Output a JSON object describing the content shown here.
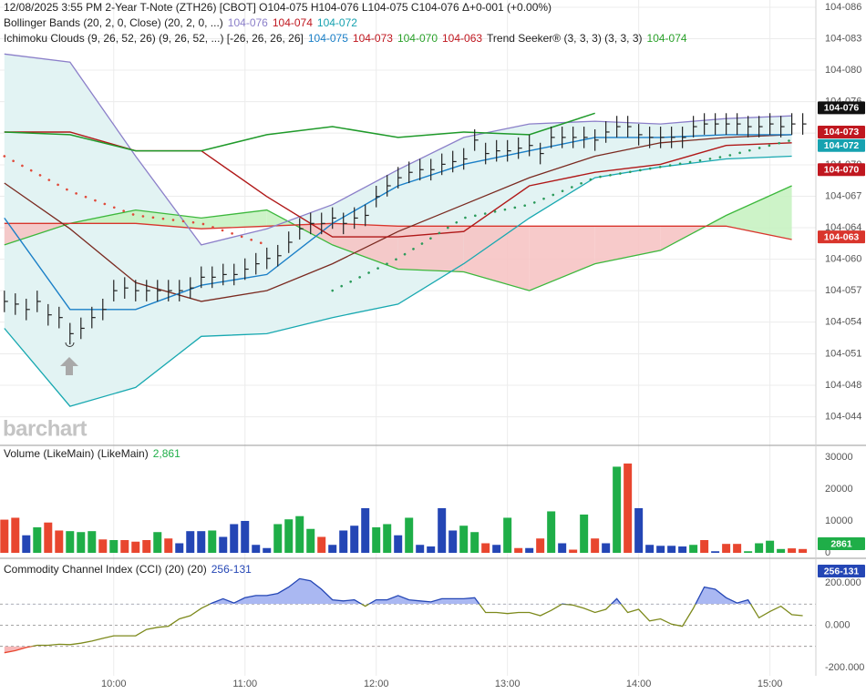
{
  "chart_data": [
    {
      "type": "ohlc",
      "legend_lines": [
        [
          {
            "text": "12/08/2025  3:55 PM 2-Year T-Note (ZTH26) [CBOT] O104-075 H104-076 L104-075 C104-076 Δ+0-001 (+0.00%)",
            "color": "#222222"
          }
        ],
        [
          {
            "text": "Bollinger Bands (20, 2, 0, Close)  (20, 2, 0, ...)",
            "color": "#222222"
          },
          {
            "text": "104-076",
            "color": "#8b7fc9"
          },
          {
            "text": "104-074",
            "color": "#c0171f"
          },
          {
            "text": "104-072",
            "color": "#17a2b0"
          }
        ],
        [
          {
            "text": "Ichimoku Clouds (9, 26, 52, 26)  (9, 26, 52, ...)  [-26, 26, 26, 26]",
            "color": "#222222"
          },
          {
            "text": "104-075",
            "color": "#1a7fc7"
          },
          {
            "text": "104-073",
            "color": "#c0171f"
          },
          {
            "text": "104-070",
            "color": "#2aa12a"
          },
          {
            "text": "104-063",
            "color": "#c0171f"
          },
          {
            "text": "Trend Seeker® (3, 3, 3)  (3, 3, 3)",
            "color": "#222222"
          },
          {
            "text": "104-074",
            "color": "#2aa12a"
          }
        ]
      ],
      "watermark": "barchart",
      "color": "#222222",
      "grid": true,
      "xlim": [
        548,
        921
      ],
      "xticks": [
        {
          "value": 600,
          "label": "10:00"
        },
        {
          "value": 660,
          "label": "11:00"
        },
        {
          "value": 720,
          "label": "12:00"
        },
        {
          "value": 780,
          "label": "13:00"
        },
        {
          "value": 840,
          "label": "14:00"
        },
        {
          "value": 900,
          "label": "15:00"
        }
      ],
      "ylim": [
        104.1108,
        104.2761
      ],
      "yticks": [
        {
          "value": 104.2734,
          "label": "104-086"
        },
        {
          "value": 104.2617,
          "label": "104-083"
        },
        {
          "value": 104.25,
          "label": "104-080"
        },
        {
          "value": 104.2383,
          "label": "104-076"
        },
        {
          "value": 104.2266,
          "label": "104-073"
        },
        {
          "value": 104.2148,
          "label": "104-070"
        },
        {
          "value": 104.2031,
          "label": "104-067"
        },
        {
          "value": 104.1914,
          "label": "104-064"
        },
        {
          "value": 104.1797,
          "label": "104-060"
        },
        {
          "value": 104.168,
          "label": "104-057"
        },
        {
          "value": 104.1563,
          "label": "104-054"
        },
        {
          "value": 104.1445,
          "label": "104-051"
        },
        {
          "value": 104.1328,
          "label": "104-048"
        },
        {
          "value": 104.1211,
          "label": "104-044"
        }
      ],
      "x": [
        550,
        555,
        560,
        565,
        570,
        575,
        580,
        585,
        590,
        595,
        600,
        605,
        610,
        615,
        620,
        625,
        630,
        635,
        640,
        645,
        650,
        655,
        660,
        665,
        670,
        675,
        680,
        685,
        690,
        695,
        700,
        705,
        710,
        715,
        720,
        725,
        730,
        735,
        740,
        745,
        750,
        755,
        760,
        765,
        770,
        775,
        780,
        785,
        790,
        795,
        800,
        805,
        810,
        815,
        820,
        825,
        830,
        835,
        840,
        845,
        850,
        855,
        860,
        865,
        870,
        875,
        880,
        885,
        890,
        895,
        900,
        905,
        910,
        915
      ],
      "high": [
        104.168,
        104.167,
        104.165,
        104.168,
        104.163,
        104.162,
        104.156,
        104.158,
        104.162,
        104.165,
        104.172,
        104.173,
        104.172,
        104.172,
        104.172,
        104.172,
        104.172,
        104.173,
        104.177,
        104.177,
        104.178,
        104.178,
        104.18,
        104.182,
        104.184,
        104.185,
        104.19,
        104.195,
        104.197,
        104.197,
        104.199,
        104.197,
        104.199,
        104.2,
        104.207,
        104.211,
        104.214,
        104.216,
        104.217,
        104.217,
        104.219,
        104.22,
        104.221,
        104.228,
        104.223,
        104.224,
        104.224,
        104.225,
        104.226,
        104.223,
        104.229,
        104.229,
        104.229,
        104.229,
        104.228,
        104.231,
        104.233,
        104.233,
        104.23,
        104.229,
        104.229,
        104.229,
        104.229,
        104.233,
        104.234,
        104.234,
        104.234,
        104.234,
        104.233,
        104.233,
        104.234,
        104.233,
        104.234,
        104.234
      ],
      "low": [
        104.16,
        104.159,
        104.157,
        104.16,
        104.155,
        104.154,
        104.148,
        104.15,
        104.154,
        104.157,
        104.164,
        104.165,
        104.164,
        104.164,
        104.164,
        104.164,
        104.164,
        104.165,
        104.169,
        104.169,
        104.17,
        104.17,
        104.172,
        104.174,
        104.176,
        104.177,
        104.182,
        104.187,
        104.189,
        104.189,
        104.191,
        104.189,
        104.191,
        104.192,
        104.199,
        104.203,
        104.206,
        104.208,
        104.209,
        104.209,
        104.211,
        104.212,
        104.213,
        104.22,
        104.215,
        104.216,
        104.216,
        104.217,
        104.218,
        104.215,
        104.221,
        104.221,
        104.221,
        104.221,
        104.22,
        104.223,
        104.225,
        104.225,
        104.222,
        104.221,
        104.221,
        104.221,
        104.221,
        104.225,
        104.226,
        104.226,
        104.226,
        104.226,
        104.225,
        104.225,
        104.226,
        104.225,
        104.226,
        104.226
      ],
      "close": [
        104.164,
        104.163,
        104.161,
        104.164,
        104.159,
        104.158,
        104.152,
        104.154,
        104.158,
        104.161,
        104.168,
        104.169,
        104.168,
        104.168,
        104.168,
        104.168,
        104.168,
        104.169,
        104.173,
        104.173,
        104.174,
        104.174,
        104.176,
        104.178,
        104.18,
        104.181,
        104.186,
        104.191,
        104.193,
        104.193,
        104.195,
        104.193,
        104.195,
        104.196,
        104.203,
        104.207,
        104.21,
        104.212,
        104.213,
        104.213,
        104.215,
        104.216,
        104.217,
        104.224,
        104.219,
        104.22,
        104.22,
        104.221,
        104.222,
        104.219,
        104.225,
        104.225,
        104.225,
        104.225,
        104.224,
        104.227,
        104.229,
        104.229,
        104.226,
        104.225,
        104.225,
        104.225,
        104.225,
        104.229,
        104.23,
        104.23,
        104.23,
        104.23,
        104.229,
        104.229,
        104.23,
        104.229,
        104.23,
        104.23
      ],
      "overlay_x": [
        550,
        580,
        610,
        640,
        670,
        700,
        730,
        760,
        790,
        820,
        850,
        880,
        910
      ],
      "bollinger": {
        "fill": "#e2f3f3",
        "upper": {
          "color": "#8b7fc9",
          "values": [
            104.256,
            104.253,
            104.218,
            104.185,
            104.191,
            104.2,
            104.213,
            104.225,
            104.23,
            104.231,
            104.23,
            104.232,
            104.233
          ]
        },
        "middle": {
          "color": "#7a2a20",
          "values": [
            104.208,
            104.191,
            104.171,
            104.164,
            104.168,
            104.178,
            104.19,
            104.2,
            104.21,
            104.218,
            104.223,
            104.225,
            104.226
          ]
        },
        "lower": {
          "color": "#17a8b0",
          "values": [
            104.154,
            104.125,
            104.132,
            104.151,
            104.152,
            104.158,
            104.163,
            104.178,
            104.195,
            104.21,
            104.214,
            104.217,
            104.218
          ]
        }
      },
      "ichimoku": {
        "bull_fill": "#c8f2c2",
        "bear_fill": "#f6c4c4",
        "span_a": {
          "color": "#3cb83c",
          "values": [
            104.185,
            104.193,
            104.198,
            104.195,
            104.198,
            104.185,
            104.176,
            104.175,
            104.168,
            104.178,
            104.183,
            104.196,
            104.207
          ]
        },
        "span_b": {
          "color": "#d9352c",
          "values": [
            104.193,
            104.193,
            104.193,
            104.191,
            104.192,
            104.193,
            104.192,
            104.192,
            104.192,
            104.192,
            104.192,
            104.192,
            104.187
          ]
        },
        "conversion": {
          "color": "#1a7fc7",
          "values": [
            104.195,
            104.161,
            104.161,
            104.17,
            104.174,
            104.193,
            104.207,
            104.215,
            104.22,
            104.225,
            104.225,
            104.226,
            104.226
          ]
        },
        "base": {
          "color": "#b01818",
          "values": [
            104.227,
            104.227,
            104.22,
            104.22,
            104.203,
            104.188,
            104.188,
            104.19,
            104.207,
            104.212,
            104.215,
            104.222,
            104.223
          ]
        },
        "lagging": {
          "color": "#1f9a2a",
          "values": [
            104.227,
            104.226,
            104.22,
            104.22,
            104.226,
            104.229,
            104.225,
            104.227,
            104.226,
            104.234,
            null,
            null,
            null
          ]
        }
      },
      "trend_seeker": [
        {
          "color": "#e04a3a",
          "values": [
            104.218,
            104.205,
            104.196,
            104.193,
            104.185,
            null,
            null,
            null,
            null,
            null,
            null,
            null,
            null
          ]
        },
        {
          "color": "#2a9a5a",
          "values": [
            null,
            null,
            null,
            null,
            null,
            104.168,
            104.18,
            104.195,
            104.2,
            104.21,
            104.214,
            104.218,
            104.224
          ]
        }
      ],
      "price_tags": [
        {
          "value": 104.236,
          "label": "104-076",
          "color": "#111111"
        },
        {
          "value": 104.227,
          "label": "104-073",
          "color": "#c0171f"
        },
        {
          "value": 104.222,
          "label": "104-072",
          "color": "#17a2b0"
        },
        {
          "value": 104.213,
          "label": "104-070",
          "color": "#c0171f"
        },
        {
          "value": 104.188,
          "label": "104-063",
          "color": "#d9352c"
        }
      ]
    },
    {
      "type": "bar",
      "legend_lines": [
        [
          {
            "text": "Volume (LikeMain)  (LikeMain)",
            "color": "#222222"
          },
          {
            "text": "2,861",
            "color": "#1fae48"
          }
        ]
      ],
      "ylim": [
        0,
        33400
      ],
      "yticks": [
        30000,
        20000,
        10000,
        0
      ],
      "values": [
        10400,
        11000,
        5500,
        8000,
        9500,
        7000,
        6800,
        6500,
        6800,
        4200,
        4000,
        4000,
        3500,
        4000,
        6500,
        4500,
        3000,
        6800,
        6800,
        7000,
        5000,
        9000,
        10000,
        2500,
        1500,
        9000,
        10500,
        11500,
        7500,
        5000,
        2500,
        7000,
        8500,
        14000,
        8000,
        9000,
        5500,
        11000,
        2500,
        2000,
        14000,
        7000,
        8500,
        6500,
        3000,
        2500,
        11000,
        1500,
        1500,
        4500,
        13000,
        3000,
        1000,
        12000,
        4500,
        3000,
        27000,
        28000,
        14000,
        2500,
        2200,
        2200,
        2000,
        2500,
        4000,
        500,
        2800,
        2800,
        500,
        3000,
        3800,
        1200,
        1400,
        1200
      ],
      "colors": [
        "#e8462f",
        "#e8462f",
        "#2446b5",
        "#1fae48",
        "#e8462f",
        "#e8462f",
        "#1fae48",
        "#1fae48",
        "#1fae48",
        "#e8462f",
        "#1fae48",
        "#e8462f",
        "#e8462f",
        "#e8462f",
        "#1fae48",
        "#e8462f",
        "#2446b5",
        "#2446b5",
        "#2446b5",
        "#1fae48",
        "#2446b5",
        "#2446b5",
        "#2446b5",
        "#2446b5",
        "#2446b5",
        "#1fae48",
        "#1fae48",
        "#1fae48",
        "#1fae48",
        "#e8462f",
        "#2446b5",
        "#2446b5",
        "#2446b5",
        "#2446b5",
        "#1fae48",
        "#1fae48",
        "#2446b5",
        "#1fae48",
        "#2446b5",
        "#2446b5",
        "#2446b5",
        "#2446b5",
        "#1fae48",
        "#1fae48",
        "#e8462f",
        "#2446b5",
        "#1fae48",
        "#e8462f",
        "#2446b5",
        "#e8462f",
        "#1fae48",
        "#2446b5",
        "#e8462f",
        "#1fae48",
        "#e8462f",
        "#2446b5",
        "#1fae48",
        "#e8462f",
        "#2446b5",
        "#2446b5",
        "#2446b5",
        "#2446b5",
        "#2446b5",
        "#1fae48",
        "#e8462f",
        "#2446b5",
        "#e8462f",
        "#e8462f",
        "#1fae48",
        "#1fae48",
        "#1fae48",
        "#1fae48",
        "#e8462f",
        "#e8462f"
      ],
      "tag": {
        "value": 2861,
        "label": "2861",
        "color": "#1fae48"
      }
    },
    {
      "type": "line",
      "legend_lines": [
        [
          {
            "text": "Commodity Channel Index (CCI) (20)  (20)",
            "color": "#222222"
          },
          {
            "text": "256-131",
            "color": "#2446b5"
          }
        ]
      ],
      "color": "#7d8a1c",
      "over_color": "#2446b5",
      "under_color": "#e8462f",
      "over_fill": "#aab8f2",
      "under_fill": "#f7b8b8",
      "levels": [
        100,
        0,
        -100
      ],
      "ylim": [
        -239,
        299
      ],
      "yticks": [
        {
          "value": 200,
          "label": "200.000"
        },
        {
          "value": 0,
          "label": "0.000"
        },
        {
          "value": -200,
          "label": "-200.000"
        }
      ],
      "values": [
        -130,
        -120,
        -105,
        -95,
        -95,
        -90,
        -92,
        -85,
        -75,
        -62,
        -50,
        -50,
        -50,
        -20,
        -10,
        -5,
        30,
        45,
        80,
        105,
        125,
        105,
        130,
        140,
        140,
        150,
        180,
        220,
        210,
        170,
        120,
        115,
        120,
        90,
        120,
        120,
        140,
        120,
        115,
        110,
        125,
        125,
        125,
        130,
        60,
        60,
        55,
        60,
        60,
        45,
        70,
        100,
        95,
        80,
        60,
        75,
        125,
        60,
        75,
        20,
        30,
        5,
        -5,
        80,
        180,
        170,
        130,
        105,
        120,
        35,
        65,
        90,
        50,
        45
      ],
      "tag": {
        "value": 256,
        "label": "256-131",
        "color": "#2446b5"
      }
    }
  ]
}
